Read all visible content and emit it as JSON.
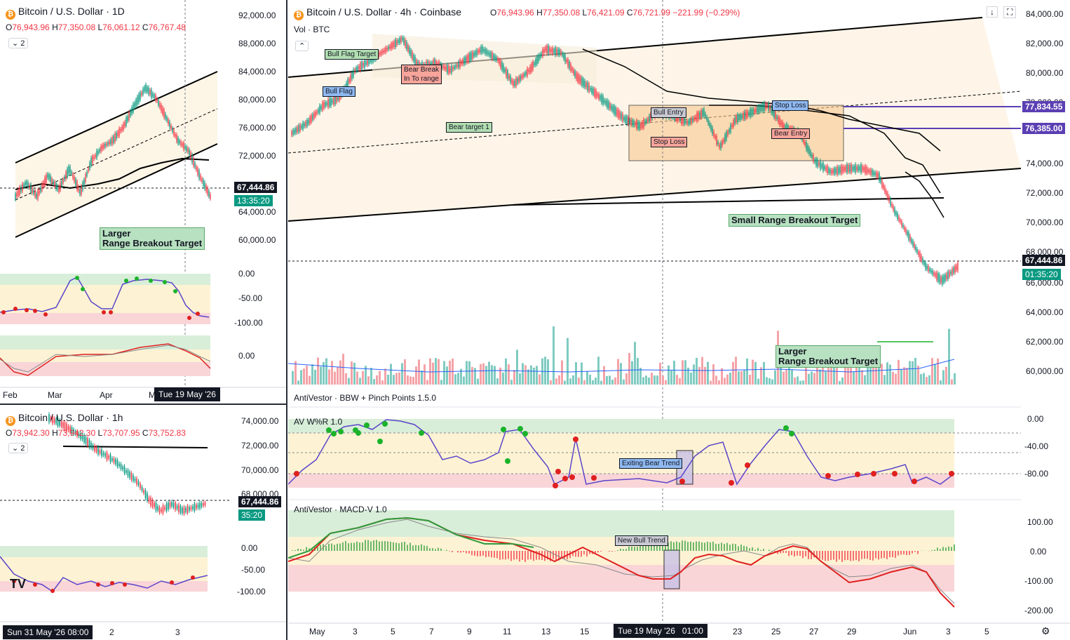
{
  "daily": {
    "title": "Bitcoin / U.S. Dollar · 1D",
    "ohlc": {
      "o": "76,943.96",
      "h": "77,350.08",
      "l": "76,061.12",
      "c": "76,767.48"
    },
    "toggle": "2",
    "price_axis": [
      "92,000.00",
      "88,000.00",
      "84,000.00",
      "80,000.00",
      "76,000.00",
      "72,000.00",
      "64,000.00",
      "60,000.00"
    ],
    "last_price": "67,444.86",
    "countdown": "13:35:20",
    "wr_axis": [
      "0.00",
      "-50.00",
      "-100.00"
    ],
    "macd_axis": [
      "0.00"
    ],
    "time_axis": [
      "Feb",
      "Mar",
      "Apr",
      "M"
    ],
    "crosshair_date": "Tue 19 May '26",
    "annotation": "Larger\nRange Breakout Target"
  },
  "hourly": {
    "title": "Bitcoin / U.S. Dollar · 1h",
    "ohlc": {
      "o": "73,942.30",
      "h": "73,942.30",
      "l": "73,707.95",
      "c": "73,752.83"
    },
    "toggle": "2",
    "price_axis": [
      "74,000.00",
      "72,000.00",
      "70,000.00",
      "68,000.00"
    ],
    "last_price": "67,444.86",
    "countdown": "35:20",
    "wr_axis": [
      "0.00",
      "-50.00",
      "-100.00"
    ],
    "time_axis": [
      "2",
      "3"
    ],
    "crosshair_date": "Sun 31 May '26   08:00",
    "logo": "TV"
  },
  "main": {
    "title": "Bitcoin / U.S. Dollar · 4h · Coinbase",
    "ohlc": {
      "o": "76,943.96",
      "h": "77,350.08",
      "l": "76,421.09",
      "c": "76,721.99",
      "chg": "−221.99 (−0.29%)"
    },
    "volume_label": "Vol · BTC",
    "price_axis": [
      "84,000.00",
      "82,000.00",
      "80,000.00",
      "78,000.00",
      "74,000.00",
      "72,000.00",
      "70,000.00",
      "68,000.00",
      "66,000.00",
      "64,000.00",
      "62,000.00",
      "60,000.00"
    ],
    "last_price": "67,444.86",
    "countdown": "01:35:20",
    "level_1": "77,834.55",
    "level_2": "76,385.00",
    "annotations": {
      "bull_flag_target": "Bull Flag Target",
      "bull_flag": "Bull Flag",
      "bear_break": "Bear Break\nIn To range",
      "bear_target_1": "Bear target 1",
      "bull_entry": "Bull Entry",
      "stop_loss_low": "Stop Loss",
      "stop_loss_high": "Stop Loss",
      "bear_entry": "Bear Entry",
      "small_range": "Small Range Breakout Target",
      "larger_range": "Larger\nRange Breakout Target",
      "exiting_bear": "Exiting Bear Trend",
      "new_bull": "New Bull Trend"
    },
    "bbw_label": "AntiVestor · BBW + Pinch Points 1.5.0",
    "wr_label": "AV W%R 1.0",
    "wr_axis": [
      "0.00",
      "-40.00",
      "-80.00"
    ],
    "macd_label": "AntiVestor · MACD-V 1.0",
    "macd_axis": [
      "100.00",
      "0.00",
      "-100.00",
      "-200.00"
    ],
    "time_axis": [
      "May",
      "3",
      "5",
      "7",
      "9",
      "11",
      "13",
      "15",
      "23",
      "25",
      "27",
      "29",
      "Jun",
      "3",
      "5"
    ],
    "crosshair_date": "Tue 19 May '26",
    "crosshair_time": "01:00"
  }
}
